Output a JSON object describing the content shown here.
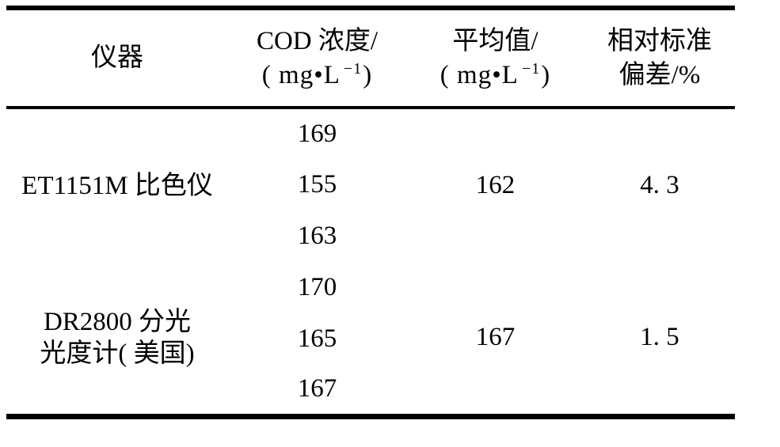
{
  "table": {
    "headers": {
      "instrument": "仪器",
      "cod_line1": "COD 浓度/",
      "avg_line1": "平均值/",
      "unit_pre": "( mg•L",
      "unit_sup": "−1",
      "unit_post": ")",
      "rsd_line1": "相对标准",
      "rsd_line2": "偏差/%"
    },
    "rows": [
      {
        "instrument": "ET1151M 比色仪",
        "values": [
          "169",
          "155",
          "163"
        ],
        "average": "162",
        "rsd": "4. 3"
      },
      {
        "instrument": "DR2800 分光\n光度计( 美国)",
        "values": [
          "170",
          "165",
          "167"
        ],
        "average": "167",
        "rsd": "1. 5"
      }
    ]
  }
}
